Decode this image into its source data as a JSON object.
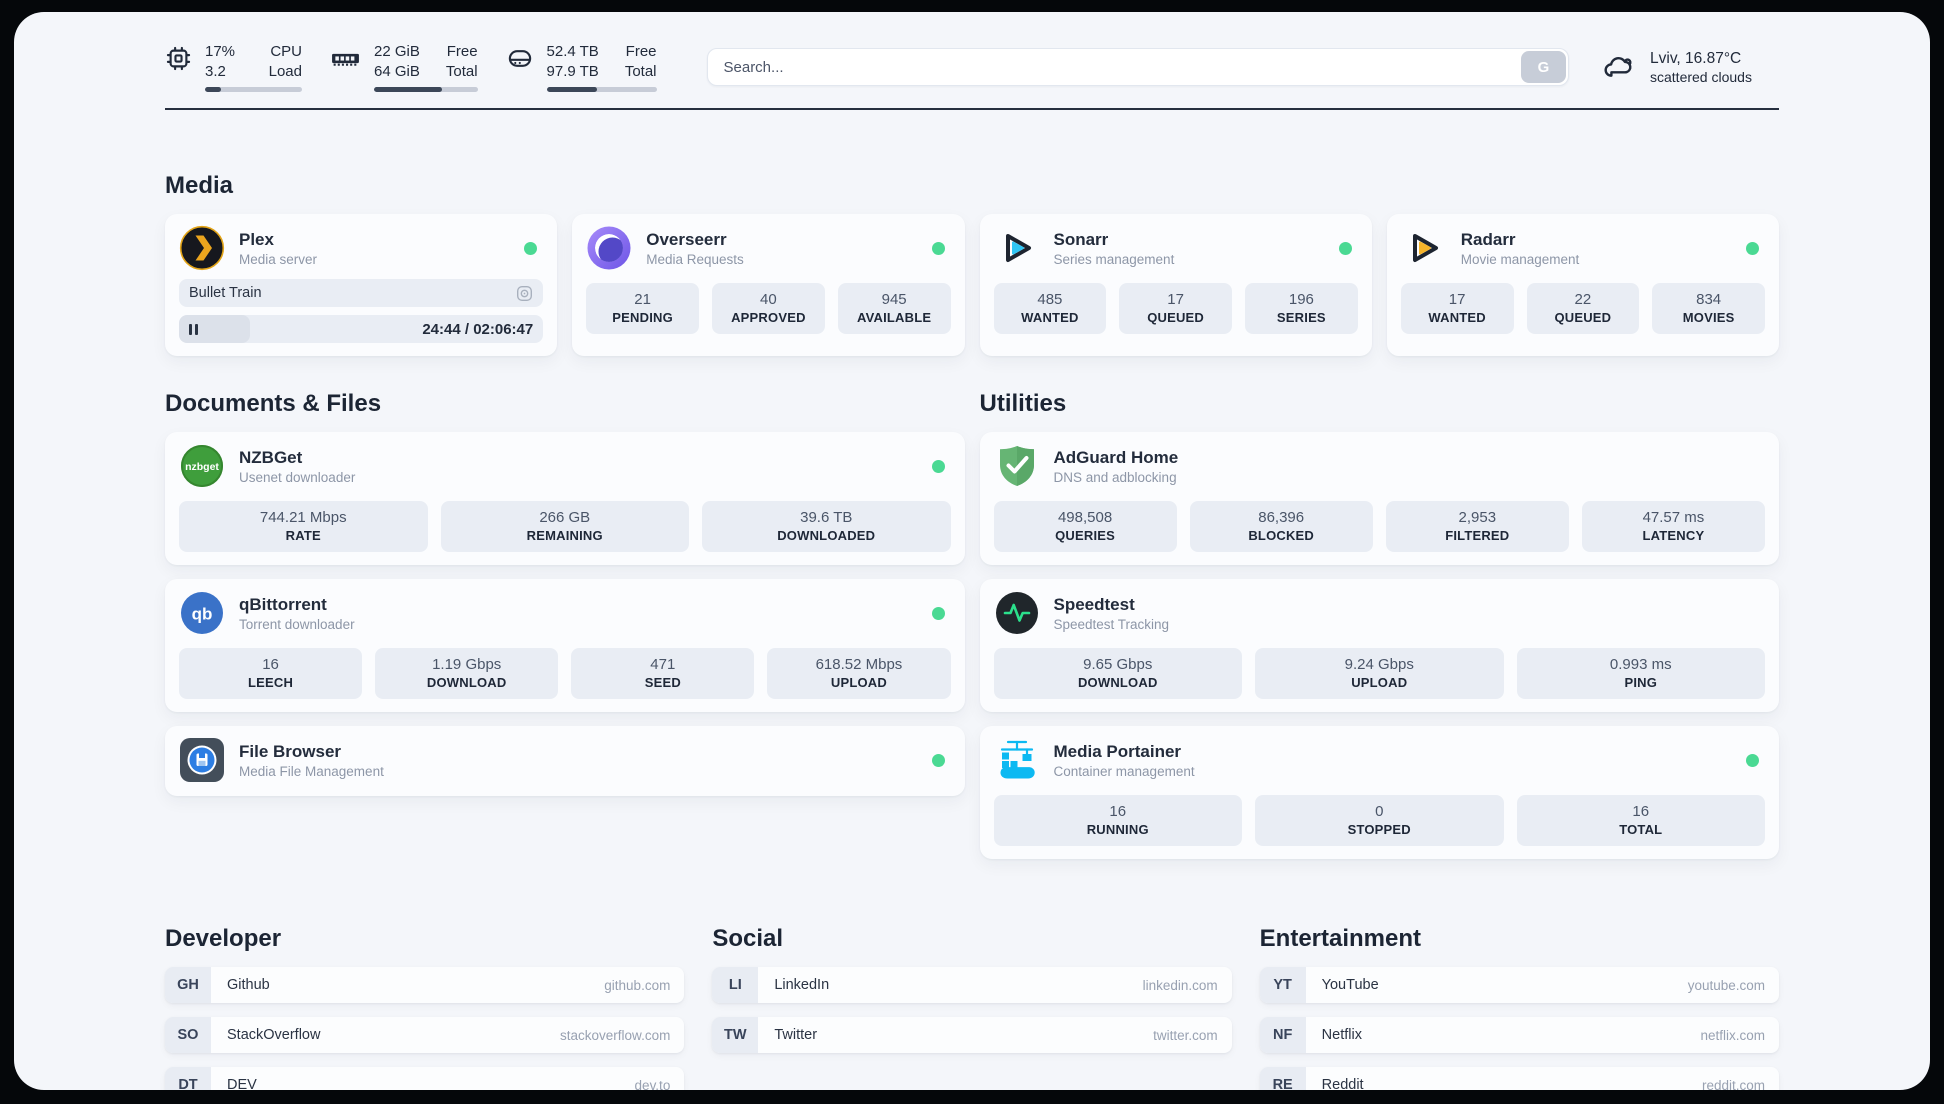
{
  "theme": {
    "status_green": "#4ad993",
    "page_bg": "#f4f6fa",
    "stat_box_bg": "#e9edf4"
  },
  "topbar": {
    "cpu": {
      "value_top": "17%",
      "value_bottom": "3.2",
      "label_top": "CPU",
      "label_bottom": "Load",
      "progress_pct": 17
    },
    "memory": {
      "value_top": "22 GiB",
      "value_bottom": "64 GiB",
      "label_top": "Free",
      "label_bottom": "Total",
      "progress_pct": 66
    },
    "disk": {
      "value_top": "52.4 TB",
      "value_bottom": "97.9 TB",
      "label_top": "Free",
      "label_bottom": "Total",
      "progress_pct": 46
    },
    "search": {
      "placeholder": "Search...",
      "button_label": "G"
    },
    "weather": {
      "location": "Lviv, 16.87°C",
      "condition": "scattered clouds"
    }
  },
  "sections": {
    "media": "Media",
    "documents": "Documents & Files",
    "utilities": "Utilities",
    "developer": "Developer",
    "social": "Social",
    "entertainment": "Entertainment"
  },
  "apps": {
    "plex": {
      "name": "Plex",
      "desc": "Media server",
      "status": "online",
      "now_playing": {
        "title": "Bullet Train",
        "state": "paused",
        "time": "24:44 / 02:06:47",
        "progress_pct": 19.5
      }
    },
    "overseerr": {
      "name": "Overseerr",
      "desc": "Media Requests",
      "status": "online",
      "stats": [
        {
          "value": "21",
          "label": "PENDING"
        },
        {
          "value": "40",
          "label": "APPROVED"
        },
        {
          "value": "945",
          "label": "AVAILABLE"
        }
      ]
    },
    "sonarr": {
      "name": "Sonarr",
      "desc": "Series management",
      "status": "online",
      "stats": [
        {
          "value": "485",
          "label": "WANTED"
        },
        {
          "value": "17",
          "label": "QUEUED"
        },
        {
          "value": "196",
          "label": "SERIES"
        }
      ]
    },
    "radarr": {
      "name": "Radarr",
      "desc": "Movie management",
      "status": "online",
      "stats": [
        {
          "value": "17",
          "label": "WANTED"
        },
        {
          "value": "22",
          "label": "QUEUED"
        },
        {
          "value": "834",
          "label": "MOVIES"
        }
      ]
    },
    "nzbget": {
      "name": "NZBGet",
      "desc": "Usenet downloader",
      "status": "online",
      "stats": [
        {
          "value": "744.21 Mbps",
          "label": "RATE"
        },
        {
          "value": "266 GB",
          "label": "REMAINING"
        },
        {
          "value": "39.6 TB",
          "label": "DOWNLOADED"
        }
      ]
    },
    "qbittorrent": {
      "name": "qBittorrent",
      "desc": "Torrent downloader",
      "status": "online",
      "stats": [
        {
          "value": "16",
          "label": "LEECH"
        },
        {
          "value": "1.19 Gbps",
          "label": "DOWNLOAD"
        },
        {
          "value": "471",
          "label": "SEED"
        },
        {
          "value": "618.52 Mbps",
          "label": "UPLOAD"
        }
      ]
    },
    "filebrowser": {
      "name": "File Browser",
      "desc": "Media File Management",
      "status": "online"
    },
    "adguard": {
      "name": "AdGuard Home",
      "desc": "DNS and adblocking",
      "stats": [
        {
          "value": "498,508",
          "label": "QUERIES"
        },
        {
          "value": "86,396",
          "label": "BLOCKED"
        },
        {
          "value": "2,953",
          "label": "FILTERED"
        },
        {
          "value": "47.57 ms",
          "label": "LATENCY"
        }
      ]
    },
    "speedtest": {
      "name": "Speedtest",
      "desc": "Speedtest Tracking",
      "stats": [
        {
          "value": "9.65 Gbps",
          "label": "DOWNLOAD"
        },
        {
          "value": "9.24 Gbps",
          "label": "UPLOAD"
        },
        {
          "value": "0.993 ms",
          "label": "PING"
        }
      ]
    },
    "portainer": {
      "name": "Media Portainer",
      "desc": "Container management",
      "status": "online",
      "stats": [
        {
          "value": "16",
          "label": "RUNNING"
        },
        {
          "value": "0",
          "label": "STOPPED"
        },
        {
          "value": "16",
          "label": "TOTAL"
        }
      ]
    }
  },
  "bookmarks": {
    "developer": [
      {
        "abbr": "GH",
        "name": "Github",
        "url": "github.com"
      },
      {
        "abbr": "SO",
        "name": "StackOverflow",
        "url": "stackoverflow.com"
      },
      {
        "abbr": "DT",
        "name": "DEV",
        "url": "dev.to"
      }
    ],
    "social": [
      {
        "abbr": "LI",
        "name": "LinkedIn",
        "url": "linkedin.com"
      },
      {
        "abbr": "TW",
        "name": "Twitter",
        "url": "twitter.com"
      }
    ],
    "entertainment": [
      {
        "abbr": "YT",
        "name": "YouTube",
        "url": "youtube.com"
      },
      {
        "abbr": "NF",
        "name": "Netflix",
        "url": "netflix.com"
      },
      {
        "abbr": "RE",
        "name": "Reddit",
        "url": "reddit.com"
      }
    ]
  }
}
